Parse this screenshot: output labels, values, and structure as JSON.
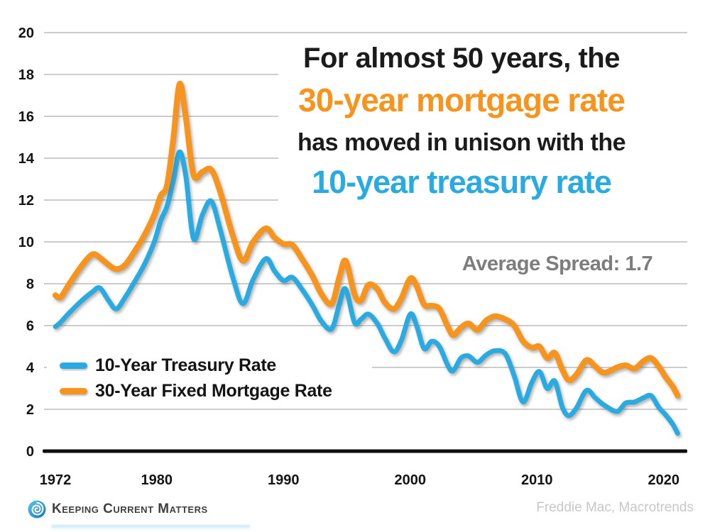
{
  "title": {
    "line1": "For almost 50 years, the",
    "line2": "30-year mortgage rate",
    "line3": "has moved in unison with the",
    "line4": "10-year treasury rate"
  },
  "annotation": {
    "text": "Average Spread: 1.7"
  },
  "legend": {
    "items": [
      {
        "label": "10-Year Treasury Rate",
        "color": "#29abe2"
      },
      {
        "label": "30-Year Fixed Mortgage Rate",
        "color": "#f7941e"
      }
    ]
  },
  "footer": {
    "brand": "Keeping Current Matters",
    "source": "Freddie Mac, Macrotrends"
  },
  "colors": {
    "treasury": "#29abe2",
    "mortgage": "#f7941e",
    "title_dark": "#1b1b1b",
    "annotation_gray": "#7d7d7d",
    "gridline": "#9a9a9a",
    "axis": "#0d0d0d",
    "tick_label": "#141414",
    "brand_blue_light": "#5bc6ea",
    "brand_blue_dark": "#1377be"
  },
  "chart_data": {
    "type": "line",
    "title": "For almost 50 years, the 30-year mortgage rate has moved in unison with the 10-year treasury rate",
    "annotation": "Average Spread: 1.7",
    "xlabel": "",
    "ylabel": "",
    "xlim": [
      1971.1,
      2021.9
    ],
    "ylim": [
      0,
      20
    ],
    "grid": true,
    "legend_position": "lower-left",
    "xticks": [
      1972,
      1980,
      1990,
      2000,
      2010,
      2020
    ],
    "yticks": [
      0,
      2,
      4,
      6,
      8,
      10,
      12,
      14,
      16,
      18,
      20
    ],
    "x": [
      1972,
      1972.4,
      1973,
      1974,
      1974.9,
      1975.5,
      1976.2,
      1976.8,
      1977.5,
      1978.3,
      1979,
      1979.8,
      1980.3,
      1980.8,
      1981.3,
      1981.8,
      1982.3,
      1982.9,
      1983.6,
      1984.3,
      1985,
      1986,
      1986.8,
      1987.6,
      1988.6,
      1989.3,
      1990,
      1990.7,
      1991.5,
      1992.3,
      1993,
      1993.8,
      1994.4,
      1994.9,
      1995.6,
      1996.1,
      1996.7,
      1997.4,
      1998,
      1998.7,
      1999.3,
      2000,
      2000.5,
      2001.1,
      2001.7,
      2002.3,
      2003,
      2003.4,
      2004,
      2004.6,
      2005.3,
      2006,
      2006.7,
      2007.5,
      2008.2,
      2008.9,
      2009.6,
      2010.2,
      2010.8,
      2011.4,
      2012,
      2012.5,
      2013.1,
      2013.9,
      2014.6,
      2015.3,
      2016.3,
      2017,
      2017.7,
      2018.4,
      2019,
      2019.6,
      2020.2,
      2020.7,
      2021.1
    ],
    "series": [
      {
        "name": "10-Year Treasury Rate",
        "color": "#29abe2",
        "values": [
          5.95,
          6.15,
          6.55,
          7.15,
          7.6,
          7.8,
          7.2,
          6.8,
          7.35,
          8.15,
          8.9,
          10.0,
          11.0,
          11.7,
          12.9,
          14.3,
          13.1,
          10.15,
          11.3,
          11.95,
          10.6,
          8.3,
          7.05,
          8.2,
          9.2,
          8.6,
          8.15,
          8.3,
          7.7,
          6.95,
          6.2,
          5.85,
          7.0,
          7.75,
          6.15,
          6.3,
          6.55,
          6.1,
          5.4,
          4.75,
          5.3,
          6.55,
          6.0,
          4.9,
          5.25,
          5.0,
          4.05,
          3.85,
          4.45,
          4.55,
          4.25,
          4.6,
          4.8,
          4.65,
          3.6,
          2.35,
          3.3,
          3.8,
          3.0,
          3.35,
          2.1,
          1.7,
          2.05,
          2.9,
          2.55,
          2.2,
          1.9,
          2.3,
          2.35,
          2.55,
          2.65,
          2.1,
          1.7,
          1.3,
          0.85
        ]
      },
      {
        "name": "30-Year Fixed Mortgage Rate",
        "color": "#f7941e",
        "values": [
          7.45,
          7.35,
          7.9,
          8.8,
          9.4,
          9.25,
          8.9,
          8.7,
          8.9,
          9.6,
          10.3,
          11.3,
          12.2,
          12.7,
          14.9,
          17.55,
          15.9,
          13.2,
          13.35,
          13.45,
          12.4,
          10.3,
          9.1,
          10.0,
          10.65,
          10.2,
          9.9,
          9.85,
          9.15,
          8.35,
          7.5,
          7.05,
          8.3,
          9.1,
          7.5,
          7.2,
          7.95,
          7.75,
          7.1,
          6.8,
          7.3,
          8.25,
          7.9,
          7.0,
          6.95,
          6.8,
          5.9,
          5.55,
          5.9,
          6.1,
          5.8,
          6.25,
          6.45,
          6.3,
          6.0,
          5.25,
          4.95,
          5.0,
          4.45,
          4.7,
          3.9,
          3.4,
          3.65,
          4.35,
          4.05,
          3.75,
          4.0,
          4.1,
          3.95,
          4.3,
          4.45,
          4.05,
          3.5,
          3.1,
          2.65
        ]
      }
    ]
  }
}
